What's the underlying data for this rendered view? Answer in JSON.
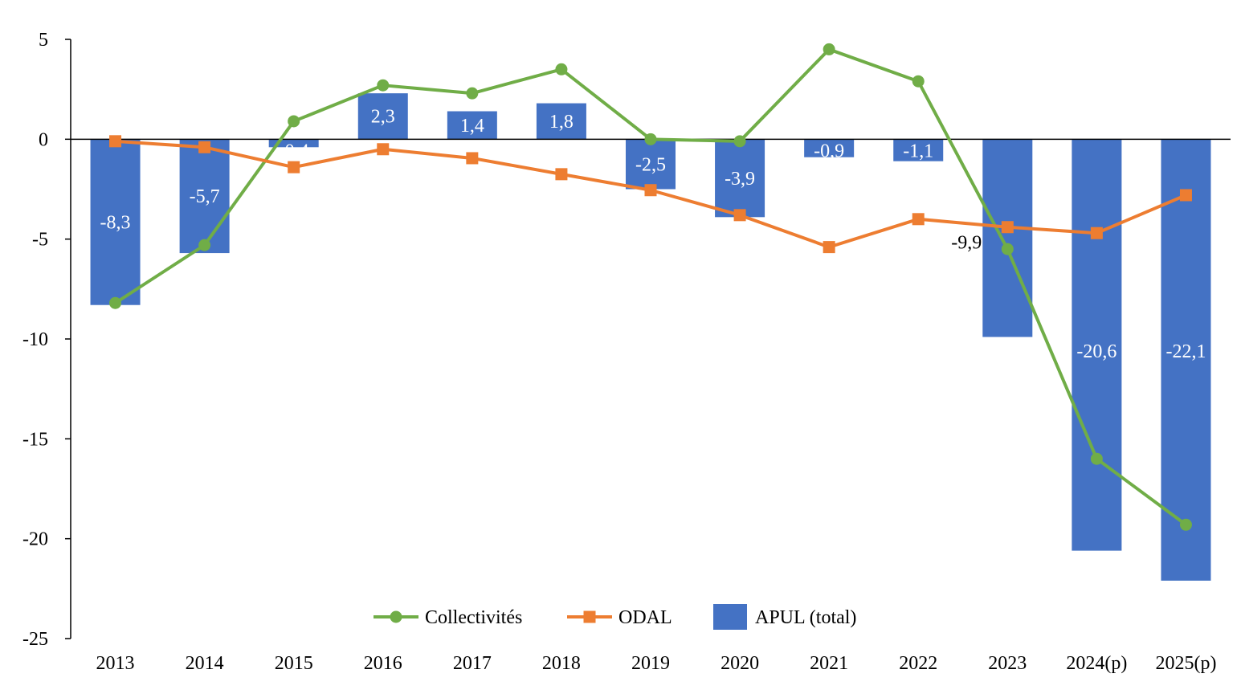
{
  "chart_data": {
    "type": "bar",
    "categories": [
      "2013",
      "2014",
      "2015",
      "2016",
      "2017",
      "2018",
      "2019",
      "2020",
      "2021",
      "2022",
      "2023",
      "2024(p)",
      "2025(p)"
    ],
    "ylim": [
      -25,
      5
    ],
    "y_ticks": [
      5,
      0,
      -5,
      -10,
      -15,
      -20,
      -25
    ],
    "y_tick_labels": [
      "5",
      "0",
      "-5",
      "-10",
      "-15",
      "-20",
      "-25"
    ],
    "grid": false,
    "legend_position": "bottom",
    "series": [
      {
        "name": "APUL (total)",
        "kind": "bar",
        "color": "#4472C4",
        "values": [
          -8.3,
          -5.7,
          -0.4,
          2.3,
          1.4,
          1.8,
          -2.5,
          -3.9,
          -0.9,
          -1.1,
          -9.9,
          -20.6,
          -22.1
        ],
        "data_labels": [
          "-8,3",
          "-5,7",
          "-0,4",
          "2,3",
          "1,4",
          "1,8",
          "-2,5",
          "-3,9",
          "-0,9",
          "-1,1",
          "-9,9",
          "-20,6",
          "-22,1"
        ]
      },
      {
        "name": "Collectivités",
        "kind": "line",
        "marker": "circle",
        "color": "#70AD47",
        "values": [
          -8.2,
          -5.3,
          0.9,
          2.7,
          2.3,
          3.5,
          0.0,
          -0.1,
          4.5,
          2.9,
          -5.5,
          -16.0,
          -19.3
        ]
      },
      {
        "name": "ODAL",
        "kind": "line",
        "marker": "square",
        "color": "#ED7D31",
        "values": [
          -0.1,
          -0.4,
          -1.4,
          -0.5,
          -0.95,
          -1.75,
          -2.55,
          -3.8,
          -5.4,
          -4.0,
          -4.4,
          -4.7,
          -2.8
        ]
      }
    ],
    "legend": [
      "Collectivités",
      "ODAL",
      "APUL (total)"
    ]
  }
}
